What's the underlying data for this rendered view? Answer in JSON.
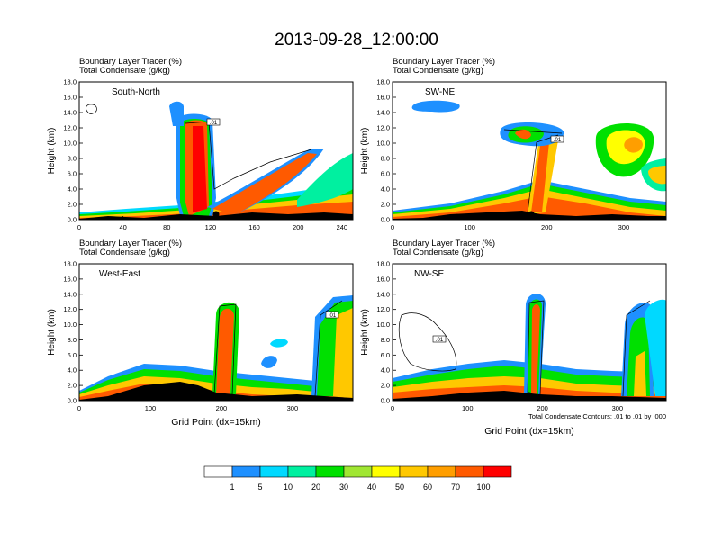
{
  "figure": {
    "title": "2013-09-28_12:00:00",
    "footnote": "Total Condensate Contours: .01 to .01 by .000"
  },
  "colorbar": {
    "colors": [
      "#ffffff",
      "#1e90ff",
      "#00d9ff",
      "#00f0a0",
      "#00e000",
      "#a0e632",
      "#ffff00",
      "#ffc800",
      "#ff9e00",
      "#ff5a00",
      "#ff0000"
    ],
    "labels": [
      "1",
      "5",
      "10",
      "20",
      "30",
      "40",
      "50",
      "60",
      "70",
      "100"
    ]
  },
  "chart_data": [
    {
      "type": "heatmap",
      "name": "South-North",
      "label": "South-North",
      "subtitle_line1": "Boundary Layer Tracer   (%)",
      "subtitle_line2": "Total Condensate   (g/kg)",
      "ylabel": "Height (km)",
      "xlabel": "",
      "xlim": [
        0,
        250
      ],
      "ylim": [
        0,
        18
      ],
      "xticks": [
        0,
        40,
        80,
        120,
        160,
        200,
        240
      ],
      "yticks": [
        "0.0",
        "2.0",
        "4.0",
        "6.0",
        "8.0",
        "10.0",
        "12.0",
        "14.0",
        "16.0",
        "18.0"
      ],
      "marker_x": 125,
      "contour_label": ".01"
    },
    {
      "type": "heatmap",
      "name": "SW-NE",
      "label": "SW-NE",
      "subtitle_line1": "Boundary Layer Tracer   (%)",
      "subtitle_line2": "Total Condensate   (g/kg)",
      "ylabel": "Height (km)",
      "xlabel": "",
      "xlim": [
        0,
        355
      ],
      "ylim": [
        0,
        18
      ],
      "xticks": [
        0,
        100,
        200,
        300
      ],
      "yticks": [
        "0.0",
        "2.0",
        "4.0",
        "6.0",
        "8.0",
        "10.0",
        "12.0",
        "14.0",
        "16.0",
        "18.0"
      ],
      "marker_x": 180,
      "contour_label": ".01"
    },
    {
      "type": "heatmap",
      "name": "West-East",
      "label": "West-East",
      "subtitle_line1": "Boundary Layer Tracer   (%)",
      "subtitle_line2": "Total Condensate   (g/kg)",
      "ylabel": "Height (km)",
      "xlabel": "Grid Point (dx=15km)",
      "xlim": [
        0,
        385
      ],
      "ylim": [
        0,
        18
      ],
      "xticks": [
        0,
        100,
        200,
        300
      ],
      "yticks": [
        "0.0",
        "2.0",
        "4.0",
        "6.0",
        "8.0",
        "10.0",
        "12.0",
        "14.0",
        "16.0",
        "18.0"
      ],
      "marker_x": 190,
      "contour_label": ".01"
    },
    {
      "type": "heatmap",
      "name": "NW-SE",
      "label": "NW-SE",
      "subtitle_line1": "Boundary Layer Tracer   (%)",
      "subtitle_line2": "Total Condensate   (g/kg)",
      "ylabel": "Height (km)",
      "xlabel": "Grid Point (dx=15km)",
      "xlim": [
        0,
        365
      ],
      "ylim": [
        0,
        18
      ],
      "xticks": [
        0,
        100,
        200,
        300
      ],
      "yticks": [
        "0.0",
        "2.0",
        "4.0",
        "6.0",
        "8.0",
        "10.0",
        "12.0",
        "14.0",
        "16.0",
        "18.0"
      ],
      "marker_x": 182,
      "contour_label": ".01"
    }
  ]
}
